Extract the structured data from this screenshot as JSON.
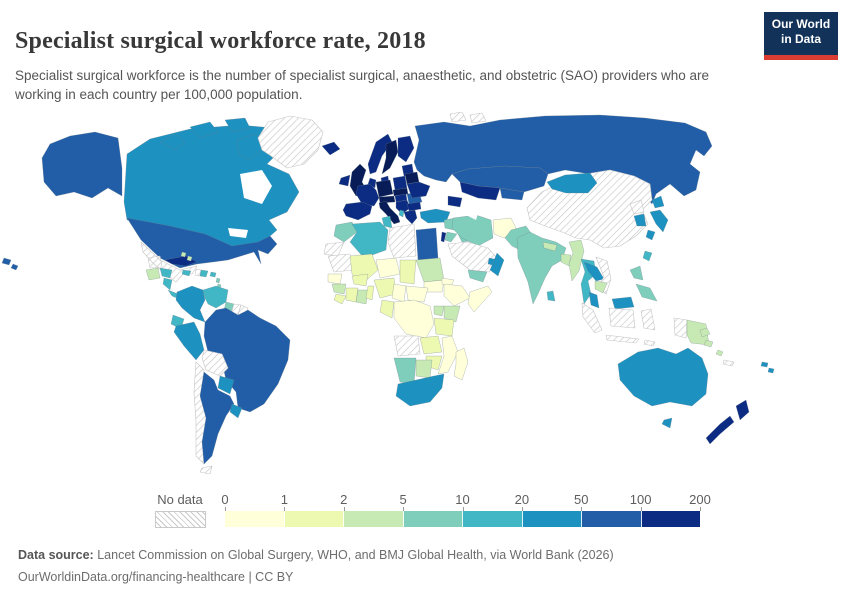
{
  "header": {
    "title": "Specialist surgical workforce rate, 2018",
    "subtitle": "Specialist surgical workforce is the number of specialist surgical, anaesthetic, and obstetric (SAO) providers who are working in each country per 100,000 population."
  },
  "logo": {
    "line1": "Our World",
    "line2": "in Data",
    "bg_color": "#12325a",
    "accent_color": "#dc3d33"
  },
  "legend": {
    "no_data_label": "No data"
  },
  "footer": {
    "source_label": "Data source:",
    "source_text": " Lancet Commission on Global Surgery, WHO, and BMJ Global Health, via World Bank (2026)",
    "link_line": "OurWorldinData.org/financing-healthcare | CC BY"
  },
  "chart_data": {
    "type": "heatmap",
    "subtype": "choropleth_world_map",
    "title": "Specialist surgical workforce rate, 2018",
    "unit": "SAO providers per 100,000 population",
    "year": "2018",
    "legend_position": "bottom",
    "bins": {
      "edges": [
        0,
        1,
        2,
        5,
        10,
        20,
        50,
        100,
        200
      ],
      "colors": [
        "#ffffd9",
        "#edf8b1",
        "#c7e9b4",
        "#7fcdbb",
        "#41b6c4",
        "#1d91c0",
        "#225ea8",
        "#0c2c84"
      ],
      "no_data_color": "hatch",
      "darkest_shade": "#081d58"
    },
    "countries": [
      {
        "id": "russia",
        "name": "Russia",
        "bin": 6,
        "range": "50-100"
      },
      {
        "id": "kazakhstan",
        "name": "Kazakhstan",
        "bin": 6,
        "range": "50-100"
      },
      {
        "id": "china",
        "name": "China",
        "bin": -1,
        "range": "No data"
      },
      {
        "id": "canada",
        "name": "Canada",
        "bin": 5,
        "range": "20-50"
      },
      {
        "id": "canada-islands",
        "name": "Canada (Arctic islands)",
        "bin": 5,
        "range": "20-50"
      },
      {
        "id": "usa-alaska",
        "name": "United States (Alaska)",
        "bin": 6,
        "range": "50-100"
      },
      {
        "id": "usa",
        "name": "United States",
        "bin": 6,
        "range": "50-100"
      },
      {
        "id": "hawaii",
        "name": "United States (Hawaii)",
        "bin": 6,
        "range": "50-100"
      },
      {
        "id": "greenland",
        "name": "Greenland",
        "bin": -1,
        "range": "No data"
      },
      {
        "id": "mexico",
        "name": "Mexico",
        "bin": -1,
        "range": "No data"
      },
      {
        "id": "guatemala",
        "name": "Guatemala",
        "bin": 2,
        "range": "2-5"
      },
      {
        "id": "honduras",
        "name": "Honduras",
        "bin": 4,
        "range": "10-20"
      },
      {
        "id": "nicaragua",
        "name": "Nicaragua",
        "bin": 4,
        "range": "10-20"
      },
      {
        "id": "costa-rica-panama",
        "name": "Costa Rica & Panama",
        "bin": 4,
        "range": "10-20"
      },
      {
        "id": "cuba",
        "name": "Cuba",
        "bin": 7,
        "range": "100-200"
      },
      {
        "id": "jamaica",
        "name": "Jamaica",
        "bin": 4,
        "range": "10-20"
      },
      {
        "id": "haiti",
        "name": "Haiti",
        "bin": -1,
        "range": "No data"
      },
      {
        "id": "dominican-republic",
        "name": "Dominican Republic",
        "bin": 4,
        "range": "10-20"
      },
      {
        "id": "puerto-rico",
        "name": "Puerto Rico",
        "bin": 4,
        "range": "10-20"
      },
      {
        "id": "bahamas",
        "name": "Bahamas",
        "bin": 2,
        "range": "2-5"
      },
      {
        "id": "lesser-antilles",
        "name": "Lesser Antilles",
        "bin": 3,
        "range": "5-10"
      },
      {
        "id": "trinidad-tobago",
        "name": "Trinidad and Tobago",
        "bin": 4,
        "range": "10-20"
      },
      {
        "id": "colombia",
        "name": "Colombia",
        "bin": 5,
        "range": "20-50"
      },
      {
        "id": "venezuela",
        "name": "Venezuela",
        "bin": 4,
        "range": "10-20"
      },
      {
        "id": "guyana",
        "name": "Guyana",
        "bin": 3,
        "range": "5-10"
      },
      {
        "id": "suriname",
        "name": "Suriname",
        "bin": -1,
        "range": "No data"
      },
      {
        "id": "french-guiana",
        "name": "French Guiana",
        "bin": -1,
        "range": "No data"
      },
      {
        "id": "ecuador",
        "name": "Ecuador",
        "bin": 4,
        "range": "10-20"
      },
      {
        "id": "peru",
        "name": "Peru",
        "bin": 5,
        "range": "20-50"
      },
      {
        "id": "brazil",
        "name": "Brazil",
        "bin": 6,
        "range": "50-100"
      },
      {
        "id": "bolivia",
        "name": "Bolivia",
        "bin": -1,
        "range": "No data"
      },
      {
        "id": "paraguay",
        "name": "Paraguay",
        "bin": 5,
        "range": "20-50"
      },
      {
        "id": "chile",
        "name": "Chile",
        "bin": -1,
        "range": "No data"
      },
      {
        "id": "argentina",
        "name": "Argentina",
        "bin": 6,
        "range": "50-100"
      },
      {
        "id": "uruguay",
        "name": "Uruguay",
        "bin": 5,
        "range": "20-50"
      },
      {
        "id": "iceland",
        "name": "Iceland",
        "bin": 7,
        "range": "100-200"
      },
      {
        "id": "ireland",
        "name": "Ireland",
        "bin": 7,
        "range": "100-200"
      },
      {
        "id": "uk",
        "name": "United Kingdom",
        "bin": 7,
        "range": "100-200",
        "fill": "#081d58"
      },
      {
        "id": "norway",
        "name": "Norway",
        "bin": 7,
        "range": "100-200"
      },
      {
        "id": "sweden",
        "name": "Sweden",
        "bin": 7,
        "range": "100-200",
        "fill": "#081d58"
      },
      {
        "id": "finland",
        "name": "Finland",
        "bin": 7,
        "range": "100-200"
      },
      {
        "id": "denmark",
        "name": "Denmark",
        "bin": 7,
        "range": "100-200"
      },
      {
        "id": "baltic-states",
        "name": "Baltic states",
        "bin": 7,
        "range": "100-200"
      },
      {
        "id": "belarus",
        "name": "Belarus",
        "bin": 7,
        "range": "100-200",
        "fill": "#081d58"
      },
      {
        "id": "poland",
        "name": "Poland",
        "bin": 7,
        "range": "100-200"
      },
      {
        "id": "germany",
        "name": "Germany",
        "bin": 7,
        "range": "100-200",
        "fill": "#081d58"
      },
      {
        "id": "netherlands-belgium",
        "name": "Netherlands & Belgium",
        "bin": 7,
        "range": "100-200"
      },
      {
        "id": "france",
        "name": "France",
        "bin": 7,
        "range": "100-200"
      },
      {
        "id": "czech-slovakia",
        "name": "Czechia & Slovakia",
        "bin": 7,
        "range": "100-200",
        "fill": "#081d58"
      },
      {
        "id": "switzerland-austria",
        "name": "Switzerland & Austria",
        "bin": 7,
        "range": "100-200",
        "fill": "#081d58"
      },
      {
        "id": "iberia",
        "name": "Spain & Portugal",
        "bin": 7,
        "range": "100-200"
      },
      {
        "id": "italy",
        "name": "Italy",
        "bin": 7,
        "range": "100-200",
        "fill": "#081d58"
      },
      {
        "id": "hungary",
        "name": "Hungary",
        "bin": 7,
        "range": "100-200"
      },
      {
        "id": "romania",
        "name": "Romania",
        "bin": 6,
        "range": "50-100"
      },
      {
        "id": "ukraine",
        "name": "Ukraine",
        "bin": 7,
        "range": "100-200"
      },
      {
        "id": "balkans",
        "name": "Serbia & Western Balkans",
        "bin": 7,
        "range": "100-200"
      },
      {
        "id": "albania",
        "name": "Albania",
        "bin": 4,
        "range": "10-20"
      },
      {
        "id": "bulgaria",
        "name": "Bulgaria",
        "bin": 7,
        "range": "100-200"
      },
      {
        "id": "greece",
        "name": "Greece",
        "bin": 7,
        "range": "100-200"
      },
      {
        "id": "turkey",
        "name": "Turkey",
        "bin": 5,
        "range": "20-50"
      },
      {
        "id": "caucasus",
        "name": "Georgia, Armenia & Azerbaijan",
        "bin": 7,
        "range": "100-200"
      },
      {
        "id": "uzbekistan-turkmenistan",
        "name": "Uzbekistan & Turkmenistan",
        "bin": 7,
        "range": "100-200"
      },
      {
        "id": "kyrgyzstan-tajikistan",
        "name": "Kyrgyzstan & Tajikistan",
        "bin": 6,
        "range": "50-100"
      },
      {
        "id": "syria",
        "name": "Syria",
        "bin": 3,
        "range": "5-10"
      },
      {
        "id": "iraq",
        "name": "Iraq",
        "bin": 3,
        "range": "5-10"
      },
      {
        "id": "iran",
        "name": "Iran",
        "bin": 3,
        "range": "5-10"
      },
      {
        "id": "israel",
        "name": "Israel",
        "bin": 7,
        "range": "100-200"
      },
      {
        "id": "jordan",
        "name": "Jordan",
        "bin": 3,
        "range": "5-10"
      },
      {
        "id": "saudi-arabia",
        "name": "Saudi Arabia",
        "bin": -1,
        "range": "No data"
      },
      {
        "id": "uae",
        "name": "United Arab Emirates",
        "bin": 5,
        "range": "20-50"
      },
      {
        "id": "oman",
        "name": "Oman",
        "bin": 5,
        "range": "20-50"
      },
      {
        "id": "yemen",
        "name": "Yemen",
        "bin": 3,
        "range": "5-10"
      },
      {
        "id": "morocco",
        "name": "Morocco",
        "bin": 3,
        "range": "5-10"
      },
      {
        "id": "western-sahara",
        "name": "Western Sahara",
        "bin": -1,
        "range": "No data"
      },
      {
        "id": "algeria",
        "name": "Algeria",
        "bin": 4,
        "range": "10-20"
      },
      {
        "id": "tunisia",
        "name": "Tunisia",
        "bin": 4,
        "range": "10-20"
      },
      {
        "id": "libya",
        "name": "Libya",
        "bin": -1,
        "range": "No data"
      },
      {
        "id": "egypt",
        "name": "Egypt",
        "bin": 6,
        "range": "50-100"
      },
      {
        "id": "mauritania",
        "name": "Mauritania",
        "bin": -1,
        "range": "No data"
      },
      {
        "id": "mali",
        "name": "Mali",
        "bin": 1,
        "range": "1-2"
      },
      {
        "id": "niger",
        "name": "Niger",
        "bin": 0,
        "range": "0-1"
      },
      {
        "id": "chad",
        "name": "Chad",
        "bin": 1,
        "range": "1-2"
      },
      {
        "id": "sudan",
        "name": "Sudan",
        "bin": 2,
        "range": "2-5"
      },
      {
        "id": "south-sudan",
        "name": "South Sudan",
        "bin": 0,
        "range": "0-1"
      },
      {
        "id": "eritrea",
        "name": "Eritrea",
        "bin": 0,
        "range": "0-1"
      },
      {
        "id": "senegal",
        "name": "Senegal",
        "bin": 0,
        "range": "0-1"
      },
      {
        "id": "guinea",
        "name": "Guinea",
        "bin": 2,
        "range": "2-5"
      },
      {
        "id": "sierra-leone-liberia",
        "name": "Sierra Leone & Liberia",
        "bin": 1,
        "range": "1-2"
      },
      {
        "id": "cote-divoire",
        "name": "Cote d'Ivoire",
        "bin": 1,
        "range": "1-2"
      },
      {
        "id": "ghana",
        "name": "Ghana",
        "bin": 2,
        "range": "2-5"
      },
      {
        "id": "burkina-faso",
        "name": "Burkina Faso",
        "bin": 1,
        "range": "1-2"
      },
      {
        "id": "benin-togo",
        "name": "Benin & Togo",
        "bin": 1,
        "range": "1-2"
      },
      {
        "id": "nigeria",
        "name": "Nigeria",
        "bin": 1,
        "range": "1-2"
      },
      {
        "id": "cameroon",
        "name": "Cameroon",
        "bin": 0,
        "range": "0-1"
      },
      {
        "id": "central-african-republic",
        "name": "Central African Republic",
        "bin": 0,
        "range": "0-1"
      },
      {
        "id": "ethiopia",
        "name": "Ethiopia",
        "bin": 0,
        "range": "0-1"
      },
      {
        "id": "somalia",
        "name": "Somalia",
        "bin": 0,
        "range": "0-1"
      },
      {
        "id": "kenya",
        "name": "Kenya",
        "bin": 2,
        "range": "2-5"
      },
      {
        "id": "uganda",
        "name": "Uganda",
        "bin": 2,
        "range": "2-5"
      },
      {
        "id": "drc",
        "name": "Democratic Republic of Congo",
        "bin": 0,
        "range": "0-1"
      },
      {
        "id": "congo-gabon",
        "name": "Congo & Gabon",
        "bin": 1,
        "range": "1-2"
      },
      {
        "id": "tanzania",
        "name": "Tanzania",
        "bin": 1,
        "range": "1-2"
      },
      {
        "id": "angola",
        "name": "Angola",
        "bin": -1,
        "range": "No data"
      },
      {
        "id": "zambia",
        "name": "Zambia",
        "bin": 1,
        "range": "1-2"
      },
      {
        "id": "mozambique",
        "name": "Mozambique",
        "bin": 0,
        "range": "0-1"
      },
      {
        "id": "zimbabwe",
        "name": "Zimbabwe",
        "bin": 1,
        "range": "1-2"
      },
      {
        "id": "namibia",
        "name": "Namibia",
        "bin": 3,
        "range": "5-10"
      },
      {
        "id": "botswana",
        "name": "Botswana",
        "bin": 2,
        "range": "2-5"
      },
      {
        "id": "south-africa",
        "name": "South Africa",
        "bin": 5,
        "range": "20-50"
      },
      {
        "id": "madagascar",
        "name": "Madagascar",
        "bin": 0,
        "range": "0-1"
      },
      {
        "id": "afghanistan",
        "name": "Afghanistan",
        "bin": 0,
        "range": "0-1"
      },
      {
        "id": "pakistan",
        "name": "Pakistan",
        "bin": 3,
        "range": "5-10"
      },
      {
        "id": "india",
        "name": "India",
        "bin": 3,
        "range": "5-10"
      },
      {
        "id": "nepal",
        "name": "Nepal",
        "bin": 2,
        "range": "2-5"
      },
      {
        "id": "bangladesh",
        "name": "Bangladesh",
        "bin": 2,
        "range": "2-5"
      },
      {
        "id": "sri-lanka",
        "name": "Sri Lanka",
        "bin": 4,
        "range": "10-20"
      },
      {
        "id": "myanmar",
        "name": "Myanmar",
        "bin": 2,
        "range": "2-5"
      },
      {
        "id": "thailand",
        "name": "Thailand",
        "bin": 4,
        "range": "10-20"
      },
      {
        "id": "laos",
        "name": "Laos",
        "bin": 5,
        "range": "20-50"
      },
      {
        "id": "vietnam",
        "name": "Vietnam",
        "bin": -1,
        "range": "No data"
      },
      {
        "id": "cambodia",
        "name": "Cambodia",
        "bin": 2,
        "range": "2-5"
      },
      {
        "id": "malaysia",
        "name": "Malaysia",
        "bin": 5,
        "range": "20-50"
      },
      {
        "id": "indonesia",
        "name": "Indonesia",
        "bin": -1,
        "range": "No data"
      },
      {
        "id": "philippines",
        "name": "Philippines",
        "bin": 3,
        "range": "5-10"
      },
      {
        "id": "taiwan",
        "name": "Taiwan",
        "bin": 4,
        "range": "10-20"
      },
      {
        "id": "mongolia",
        "name": "Mongolia",
        "bin": 5,
        "range": "20-50"
      },
      {
        "id": "north-korea",
        "name": "North Korea",
        "bin": -1,
        "range": "No data"
      },
      {
        "id": "south-korea",
        "name": "South Korea",
        "bin": 5,
        "range": "20-50"
      },
      {
        "id": "japan",
        "name": "Japan",
        "bin": 5,
        "range": "20-50"
      },
      {
        "id": "papua-new-guinea",
        "name": "Papua New Guinea",
        "bin": 2,
        "range": "2-5"
      },
      {
        "id": "australia",
        "name": "Australia",
        "bin": 5,
        "range": "20-50"
      },
      {
        "id": "new-zealand",
        "name": "New Zealand",
        "bin": 7,
        "range": "100-200"
      },
      {
        "id": "solomon-islands",
        "name": "Solomon Islands",
        "bin": 2,
        "range": "2-5"
      },
      {
        "id": "vanuatu",
        "name": "Vanuatu",
        "bin": 2,
        "range": "2-5"
      },
      {
        "id": "new-caledonia",
        "name": "New Caledonia",
        "bin": -1,
        "range": "No data"
      },
      {
        "id": "fiji",
        "name": "Fiji",
        "bin": 5,
        "range": "20-50"
      },
      {
        "id": "svalbard",
        "name": "Svalbard",
        "bin": -1,
        "range": "No data"
      }
    ]
  }
}
